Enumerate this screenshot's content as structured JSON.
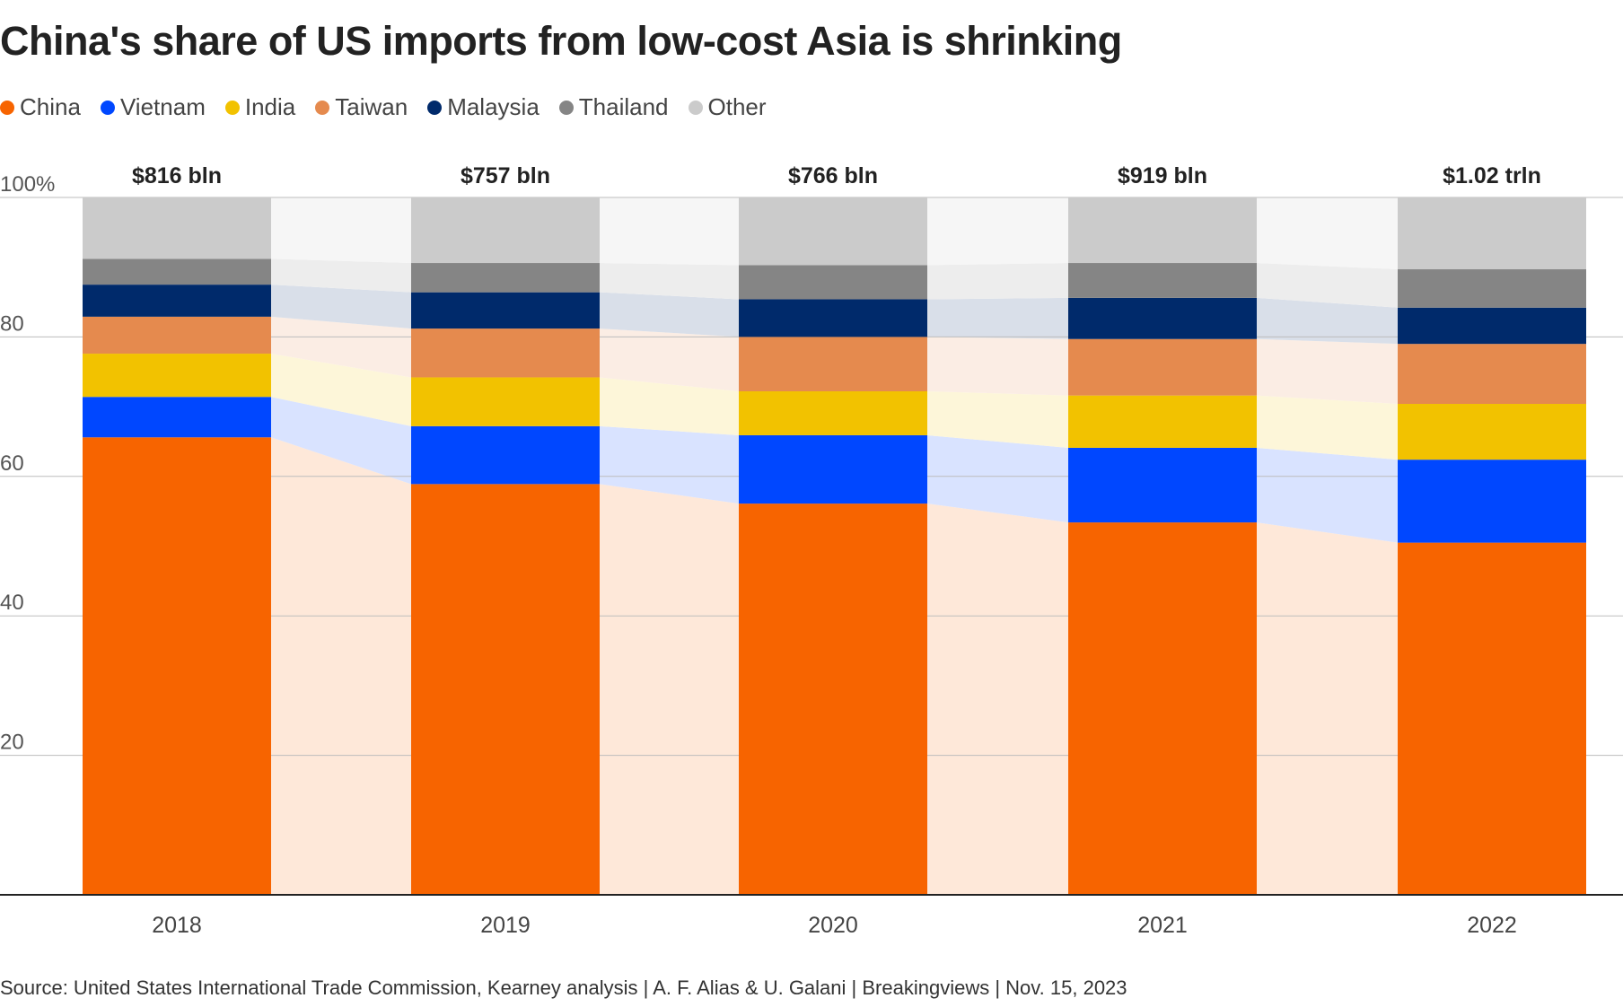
{
  "title": "China's share of US imports from low-cost Asia is shrinking",
  "legend": [
    {
      "label": "China",
      "color": "#f76400"
    },
    {
      "label": "Vietnam",
      "color": "#0047ff"
    },
    {
      "label": "India",
      "color": "#f2c200"
    },
    {
      "label": "Taiwan",
      "color": "#e58a4e"
    },
    {
      "label": "Malaysia",
      "color": "#002a6b"
    },
    {
      "label": "Thailand",
      "color": "#858585"
    },
    {
      "label": "Other",
      "color": "#cbcbcb"
    }
  ],
  "footer": {
    "source": "Source: United States International Trade Commission, Kearney analysis",
    "authors": "A. F. Alias & U. Galani",
    "brand": "Breakingviews",
    "date": "Nov. 15, 2023"
  },
  "chart_data": {
    "type": "bar",
    "stacked": true,
    "title": "China's share of US imports from low-cost Asia is shrinking",
    "xlabel": "",
    "ylabel": "",
    "ylim": [
      0,
      100
    ],
    "y_ticks": [
      {
        "value": 100,
        "label": "100%"
      },
      {
        "value": 80,
        "label": "80"
      },
      {
        "value": 60,
        "label": "60"
      },
      {
        "value": 40,
        "label": "40"
      },
      {
        "value": 20,
        "label": "20"
      }
    ],
    "categories": [
      "2018",
      "2019",
      "2020",
      "2021",
      "2022"
    ],
    "totals": [
      "$816 bln",
      "$757 bln",
      "$766 bln",
      "$919 bln",
      "$1.02 trln"
    ],
    "series": [
      {
        "name": "China",
        "color": "#f76400",
        "values": [
          65.6,
          58.9,
          56.1,
          53.4,
          50.5
        ]
      },
      {
        "name": "Vietnam",
        "color": "#0047ff",
        "values": [
          5.8,
          8.3,
          9.8,
          10.7,
          11.9
        ]
      },
      {
        "name": "India",
        "color": "#f2c200",
        "values": [
          6.2,
          7.0,
          6.3,
          7.5,
          8.0
        ]
      },
      {
        "name": "Taiwan",
        "color": "#e58a4e",
        "values": [
          5.3,
          7.0,
          7.8,
          8.1,
          8.6
        ]
      },
      {
        "name": "Malaysia",
        "color": "#002a6b",
        "values": [
          4.6,
          5.2,
          5.4,
          5.9,
          5.2
        ]
      },
      {
        "name": "Thailand",
        "color": "#858585",
        "values": [
          3.7,
          4.2,
          4.9,
          5.0,
          5.5
        ]
      },
      {
        "name": "Other",
        "color": "#cbcbcb",
        "values": [
          8.8,
          9.4,
          9.7,
          9.4,
          10.3
        ]
      }
    ]
  }
}
